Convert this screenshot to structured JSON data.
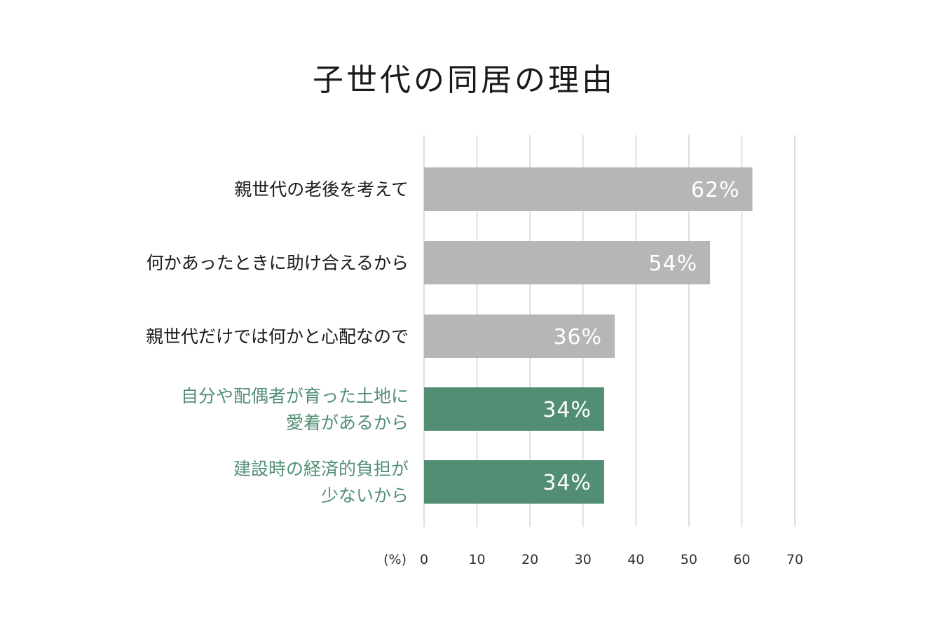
{
  "chart_data": {
    "type": "bar",
    "orientation": "horizontal",
    "title": "子世代の同居の理由",
    "unit_label": "(%)",
    "xlim": [
      0,
      70
    ],
    "x_ticks": [
      0,
      10,
      20,
      30,
      40,
      50,
      60,
      70
    ],
    "grid": true,
    "categories": [
      [
        "親世代の老後を考えて"
      ],
      [
        "何かあったときに助け合えるから"
      ],
      [
        "親世代だけでは何かと心配なので"
      ],
      [
        "自分や配偶者が育った土地に",
        "愛着があるから"
      ],
      [
        "建設時の経済的負担が",
        "少ないから"
      ]
    ],
    "values": [
      62,
      54,
      36,
      34,
      34
    ],
    "value_labels": [
      "62%",
      "54%",
      "36%",
      "34%",
      "34%"
    ],
    "highlighted": [
      false,
      false,
      false,
      true,
      true
    ],
    "colors": {
      "bar_default": "#b5b7b6",
      "bar_highlight": "#528e74",
      "label_default": "#1a1a1a",
      "label_highlight": "#528e74",
      "grid": "#d4d4d4",
      "tick_text": "#333333",
      "value_text": "#ffffff"
    }
  }
}
